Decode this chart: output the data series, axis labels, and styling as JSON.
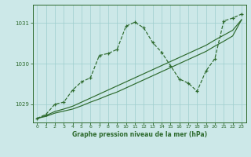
{
  "title": "Graphe pression niveau de la mer (hPa)",
  "background_color": "#cce8e8",
  "plot_bg_color": "#cce8e8",
  "line_color": "#2d6a2d",
  "grid_color": "#9ecece",
  "x_ticks": [
    0,
    1,
    2,
    3,
    4,
    5,
    6,
    7,
    8,
    9,
    10,
    11,
    12,
    13,
    14,
    15,
    16,
    17,
    18,
    19,
    20,
    21,
    22,
    23
  ],
  "ylim": [
    1028.55,
    1031.45
  ],
  "yticks": [
    1029,
    1030,
    1031
  ],
  "line1_x": [
    0,
    1,
    2,
    3,
    4,
    5,
    6,
    7,
    8,
    9,
    10,
    11,
    12,
    13,
    14,
    15,
    16,
    17,
    18,
    19,
    20,
    21,
    22,
    23
  ],
  "line1_y": [
    1028.65,
    1028.72,
    1028.82,
    1028.88,
    1028.95,
    1029.05,
    1029.15,
    1029.25,
    1029.35,
    1029.45,
    1029.55,
    1029.65,
    1029.75,
    1029.85,
    1029.95,
    1030.05,
    1030.15,
    1030.25,
    1030.35,
    1030.45,
    1030.58,
    1030.7,
    1030.82,
    1031.08
  ],
  "line2_x": [
    0,
    1,
    2,
    3,
    4,
    5,
    6,
    7,
    8,
    9,
    10,
    11,
    12,
    13,
    14,
    15,
    16,
    17,
    18,
    19,
    20,
    21,
    22,
    23
  ],
  "line2_y": [
    1028.65,
    1028.7,
    1028.78,
    1028.83,
    1028.88,
    1028.96,
    1029.05,
    1029.13,
    1029.22,
    1029.3,
    1029.4,
    1029.5,
    1029.6,
    1029.7,
    1029.8,
    1029.9,
    1030.0,
    1030.1,
    1030.2,
    1030.3,
    1030.43,
    1030.55,
    1030.68,
    1031.08
  ],
  "line3_x": [
    0,
    1,
    2,
    3,
    4,
    5,
    6,
    7,
    8,
    9,
    10,
    11,
    12,
    13,
    14,
    15,
    16,
    17,
    18,
    19,
    20,
    21,
    22,
    23
  ],
  "line3_y": [
    1028.65,
    1028.75,
    1029.0,
    1029.05,
    1029.35,
    1029.55,
    1029.65,
    1030.2,
    1030.25,
    1030.35,
    1030.92,
    1031.02,
    1030.88,
    1030.52,
    1030.28,
    1029.95,
    1029.62,
    1029.52,
    1029.32,
    1029.82,
    1030.12,
    1031.05,
    1031.12,
    1031.22
  ]
}
